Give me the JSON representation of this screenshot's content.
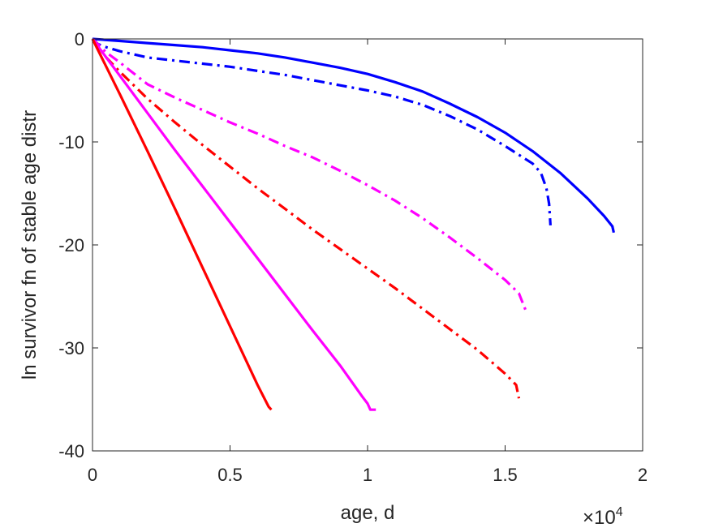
{
  "chart_data": {
    "type": "line",
    "xlabel": "age, d",
    "ylabel": "ln survivor fn of stable age distr",
    "x_exponent_base": "×10",
    "x_exponent_power": "4",
    "xlim": [
      0,
      20000
    ],
    "ylim": [
      -40,
      0
    ],
    "x_ticks": [
      0,
      5000,
      10000,
      15000,
      20000
    ],
    "x_tick_labels": [
      "0",
      "0.5",
      "1",
      "1.5",
      "2"
    ],
    "y_ticks": [
      0,
      -10,
      -20,
      -30,
      -40
    ],
    "y_tick_labels": [
      "0",
      "-10",
      "-20",
      "-30",
      "-40"
    ],
    "grid": false,
    "series": [
      {
        "color": "#0000ff",
        "style": "solid",
        "points": [
          [
            0,
            0
          ],
          [
            1000,
            -0.2
          ],
          [
            2000,
            -0.4
          ],
          [
            3000,
            -0.6
          ],
          [
            4000,
            -0.8
          ],
          [
            5000,
            -1.1
          ],
          [
            6000,
            -1.4
          ],
          [
            7000,
            -1.8
          ],
          [
            8000,
            -2.3
          ],
          [
            9000,
            -2.8
          ],
          [
            10000,
            -3.4
          ],
          [
            11000,
            -4.2
          ],
          [
            12000,
            -5.1
          ],
          [
            13000,
            -6.3
          ],
          [
            14000,
            -7.6
          ],
          [
            15000,
            -9.1
          ],
          [
            16000,
            -10.9
          ],
          [
            17000,
            -13.0
          ],
          [
            18000,
            -15.5
          ],
          [
            18600,
            -17.2
          ],
          [
            18900,
            -18.2
          ],
          [
            18950,
            -18.8
          ]
        ]
      },
      {
        "color": "#0000ff",
        "style": "dashdot",
        "points": [
          [
            0,
            0
          ],
          [
            200,
            -0.5
          ],
          [
            500,
            -0.8
          ],
          [
            1000,
            -1.2
          ],
          [
            2000,
            -1.8
          ],
          [
            3000,
            -2.1
          ],
          [
            4000,
            -2.4
          ],
          [
            5000,
            -2.7
          ],
          [
            6000,
            -3.1
          ],
          [
            7000,
            -3.5
          ],
          [
            8000,
            -4.0
          ],
          [
            9000,
            -4.5
          ],
          [
            10000,
            -5.0
          ],
          [
            11000,
            -5.6
          ],
          [
            12000,
            -6.4
          ],
          [
            13000,
            -7.5
          ],
          [
            14000,
            -8.8
          ],
          [
            15000,
            -10.4
          ],
          [
            16000,
            -12.1
          ],
          [
            16300,
            -13.0
          ],
          [
            16500,
            -14.5
          ],
          [
            16600,
            -16.0
          ],
          [
            16650,
            -18.1
          ]
        ]
      },
      {
        "color": "#ff00ff",
        "style": "dashdot",
        "points": [
          [
            0,
            0
          ],
          [
            500,
            -1.3
          ],
          [
            1000,
            -2.3
          ],
          [
            2000,
            -4.4
          ],
          [
            3000,
            -5.7
          ],
          [
            4000,
            -6.9
          ],
          [
            5000,
            -8.1
          ],
          [
            6000,
            -9.2
          ],
          [
            7000,
            -10.4
          ],
          [
            8000,
            -11.5
          ],
          [
            9000,
            -12.8
          ],
          [
            10000,
            -14.2
          ],
          [
            11000,
            -15.7
          ],
          [
            12000,
            -17.4
          ],
          [
            13000,
            -19.3
          ],
          [
            14000,
            -21.3
          ],
          [
            15000,
            -23.4
          ],
          [
            15500,
            -24.7
          ],
          [
            15800,
            -26.7
          ]
        ]
      },
      {
        "color": "#ff0000",
        "style": "dashdot",
        "points": [
          [
            0,
            0
          ],
          [
            500,
            -1.8
          ],
          [
            1000,
            -3.2
          ],
          [
            2000,
            -5.8
          ],
          [
            3000,
            -8.1
          ],
          [
            4000,
            -10.3
          ],
          [
            5000,
            -12.4
          ],
          [
            6000,
            -14.5
          ],
          [
            7000,
            -16.5
          ],
          [
            8000,
            -18.5
          ],
          [
            9000,
            -20.4
          ],
          [
            10000,
            -22.3
          ],
          [
            11000,
            -24.2
          ],
          [
            12000,
            -26.2
          ],
          [
            13000,
            -28.2
          ],
          [
            14000,
            -30.2
          ],
          [
            15000,
            -32.5
          ],
          [
            15400,
            -33.6
          ],
          [
            15500,
            -34.9
          ]
        ]
      },
      {
        "color": "#ff00ff",
        "style": "solid",
        "points": [
          [
            0,
            0
          ],
          [
            1000,
            -3.6
          ],
          [
            2000,
            -7.2
          ],
          [
            3000,
            -10.8
          ],
          [
            4000,
            -14.3
          ],
          [
            5000,
            -17.8
          ],
          [
            6000,
            -21.3
          ],
          [
            7000,
            -24.8
          ],
          [
            8000,
            -28.3
          ],
          [
            9000,
            -31.7
          ],
          [
            9800,
            -34.7
          ],
          [
            10000,
            -35.4
          ],
          [
            10100,
            -36.0
          ],
          [
            10300,
            -36.0
          ]
        ]
      },
      {
        "color": "#ff0000",
        "style": "solid",
        "points": [
          [
            0,
            0
          ],
          [
            1000,
            -5.4
          ],
          [
            2000,
            -10.9
          ],
          [
            3000,
            -16.5
          ],
          [
            4000,
            -22.2
          ],
          [
            5000,
            -27.9
          ],
          [
            6000,
            -33.6
          ],
          [
            6400,
            -35.7
          ],
          [
            6500,
            -36.0
          ]
        ]
      }
    ]
  }
}
